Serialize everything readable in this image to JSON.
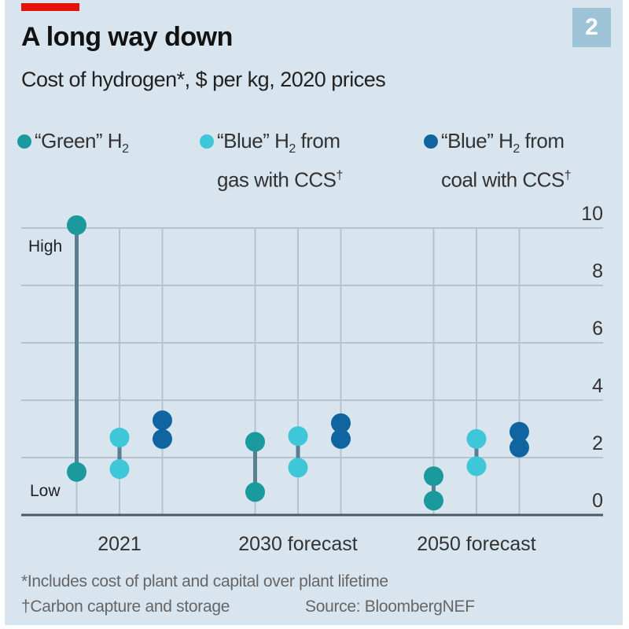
{
  "header": {
    "title": "A long way down",
    "subtitle": "Cost of hydrogen*, $ per kg, 2020 prices",
    "badge": "2"
  },
  "legend": [
    {
      "label_pre": "“Green” H",
      "sub": "2",
      "line2": "",
      "color": "#1a9a9c"
    },
    {
      "label_pre": "“Blue” H",
      "sub": "2",
      "label_post": " from",
      "line2": "gas with CCS",
      "sup": "†",
      "color": "#3ec6d9"
    },
    {
      "label_pre": "“Blue” H",
      "sub": "2",
      "label_post": " from",
      "line2": "coal with CCS",
      "sup": "†",
      "color": "#1065a0"
    }
  ],
  "chart_data": {
    "type": "dumbbell",
    "title": "A long way down",
    "subtitle": "Cost of hydrogen*, $ per kg, 2020 prices",
    "ylim": [
      0,
      10
    ],
    "yticks": [
      0,
      2,
      4,
      6,
      8,
      10
    ],
    "categories": [
      "2021",
      "2030 forecast",
      "2050 forecast"
    ],
    "annotations": {
      "high": "High",
      "low": "Low"
    },
    "series": [
      {
        "name": "“Green” H2",
        "color": "#1a9a9c",
        "low": [
          1.5,
          0.8,
          0.5
        ],
        "high": [
          10.1,
          2.55,
          1.35
        ]
      },
      {
        "name": "“Blue” H2 from gas with CCS†",
        "color": "#3ec6d9",
        "low": [
          1.6,
          1.65,
          1.7
        ],
        "high": [
          2.7,
          2.75,
          2.65
        ]
      },
      {
        "name": "“Blue” H2 from coal with CCS†",
        "color": "#1065a0",
        "low": [
          2.65,
          2.65,
          2.35
        ],
        "high": [
          3.3,
          3.2,
          2.9
        ]
      }
    ],
    "grid": true
  },
  "footer": {
    "note1": "*Includes cost of plant and capital over plant lifetime",
    "note2": "†Carbon capture and storage",
    "source": "Source: BloombergNEF"
  }
}
